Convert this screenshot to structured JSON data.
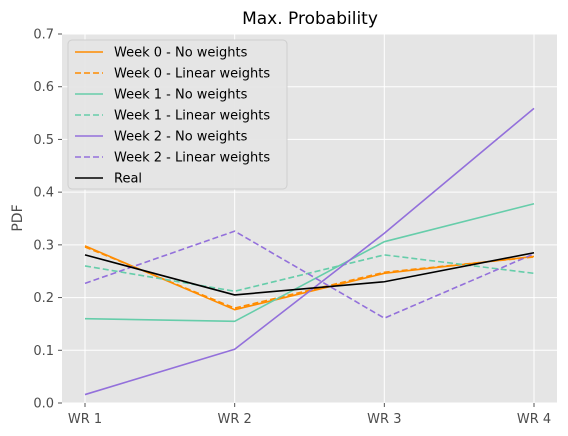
{
  "chart_data": {
    "type": "line",
    "title": "Max. Probability",
    "xlabel": "",
    "ylabel": "PDF",
    "categories": [
      "WR 1",
      "WR 2",
      "WR 3",
      "WR 4"
    ],
    "ylim": [
      0,
      0.7
    ],
    "yticks": [
      "0.0",
      "0.1",
      "0.2",
      "0.3",
      "0.4",
      "0.5",
      "0.6",
      "0.7"
    ],
    "grid": true,
    "legend_position": "top-left",
    "series": [
      {
        "name": "Week 0 - No weights",
        "values": [
          0.298,
          0.177,
          0.246,
          0.278
        ],
        "color": "#ff8c00",
        "dashed": false
      },
      {
        "name": "Week 0 - Linear weights",
        "values": [
          0.296,
          0.18,
          0.248,
          0.277
        ],
        "color": "#ff8c00",
        "dashed": true
      },
      {
        "name": "Week 1 - No weights",
        "values": [
          0.16,
          0.155,
          0.306,
          0.378
        ],
        "color": "#66cdaa",
        "dashed": false
      },
      {
        "name": "Week 1 - Linear weights",
        "values": [
          0.26,
          0.212,
          0.281,
          0.246
        ],
        "color": "#66cdaa",
        "dashed": true
      },
      {
        "name": "Week 2 - No weights",
        "values": [
          0.016,
          0.102,
          0.322,
          0.559
        ],
        "color": "#9370db",
        "dashed": false
      },
      {
        "name": "Week 2 - Linear weights",
        "values": [
          0.227,
          0.326,
          0.161,
          0.283
        ],
        "color": "#9370db",
        "dashed": true
      },
      {
        "name": "Real",
        "values": [
          0.281,
          0.205,
          0.23,
          0.285
        ],
        "color": "#000000",
        "dashed": false
      }
    ]
  },
  "colors": {
    "plot_background": "#e5e5e5",
    "grid": "#ffffff",
    "text": "#4d4d4d"
  }
}
